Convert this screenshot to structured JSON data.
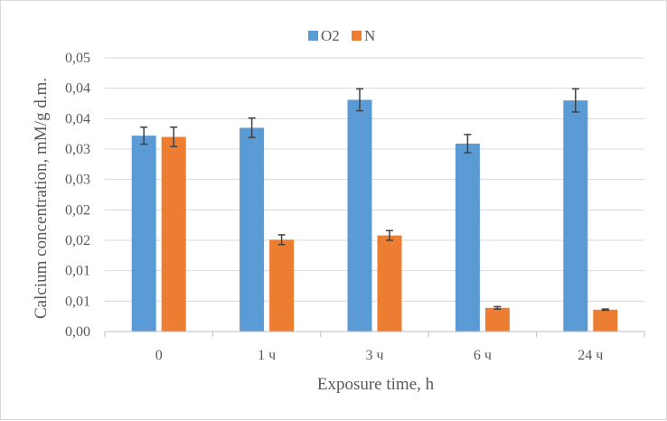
{
  "chart_data": {
    "type": "bar",
    "categories": [
      "0",
      "1 ч",
      "3 ч",
      "6 ч",
      "24 ч"
    ],
    "series": [
      {
        "name": "O2",
        "color": "#5b9bd5",
        "values": [
          0.0322,
          0.0335,
          0.0381,
          0.0309,
          0.038
        ],
        "errors": [
          0.0014,
          0.0016,
          0.0018,
          0.0015,
          0.0019
        ]
      },
      {
        "name": "N",
        "color": "#ed7d31",
        "values": [
          0.032,
          0.0151,
          0.0158,
          0.0039,
          0.0036
        ],
        "errors": [
          0.0016,
          0.0008,
          0.0008,
          0.0002,
          0.0001
        ]
      }
    ],
    "yticks": [
      "0,00",
      "0,01",
      "0,01",
      "0,02",
      "0,02",
      "0,03",
      "0,03",
      "0,04",
      "0,04",
      "0,05"
    ],
    "ylim": [
      0,
      0.045
    ],
    "xlabel": "Exposure time, h",
    "ylabel": "Calcium concentration, mM/g d.m.",
    "grid": true,
    "legend_position": "top-center",
    "error_bar_color": "#404040"
  }
}
